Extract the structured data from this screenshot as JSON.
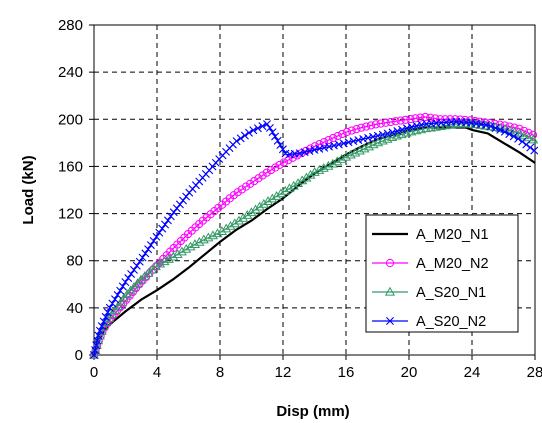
{
  "chart_data": {
    "type": "line",
    "title": "",
    "xlabel": "Disp (mm)",
    "ylabel": "Load (kN)",
    "xlim": [
      0,
      28
    ],
    "ylim": [
      0,
      280
    ],
    "xticks": [
      0,
      4,
      8,
      12,
      16,
      20,
      24,
      28
    ],
    "yticks": [
      0,
      40,
      80,
      120,
      160,
      200,
      240,
      280
    ],
    "grid": true,
    "legend_position": "lower-right",
    "series": [
      {
        "name": "A_M20_N1",
        "color": "#000000",
        "marker": "none",
        "x": [
          0,
          0.3,
          0.6,
          1,
          2,
          3,
          4,
          5,
          6,
          7,
          8,
          9,
          10,
          11,
          12,
          13,
          14,
          15,
          16,
          17,
          18,
          19,
          20,
          21,
          22,
          23,
          23.6,
          24,
          25,
          26,
          27,
          28
        ],
        "y": [
          0,
          12,
          20,
          26,
          37,
          47,
          55,
          64,
          74,
          85,
          96,
          106,
          114,
          124,
          133,
          144,
          154,
          162,
          170,
          177,
          183,
          187,
          191,
          193,
          193,
          193,
          193,
          191,
          188,
          180,
          172,
          163
        ]
      },
      {
        "name": "A_M20_N2",
        "color": "#ff00ff",
        "marker": "circle",
        "x": [
          0,
          0.3,
          0.6,
          1,
          2,
          3,
          4,
          5,
          6,
          7,
          8,
          9,
          10,
          11,
          12,
          13,
          14,
          15,
          16,
          17,
          18,
          19,
          20,
          21,
          22,
          23,
          24,
          25,
          26,
          27,
          28
        ],
        "y": [
          0,
          12,
          22,
          30,
          46,
          62,
          76,
          90,
          103,
          115,
          126,
          137,
          146,
          155,
          163,
          170,
          177,
          183,
          189,
          193,
          196,
          198,
          200,
          202,
          200,
          200,
          199,
          197,
          195,
          192,
          186
        ]
      },
      {
        "name": "A_S20_N1",
        "color": "#339966",
        "marker": "triangle",
        "x": [
          0,
          0.3,
          0.6,
          1,
          2,
          3,
          4,
          5,
          6,
          7,
          8,
          9,
          10,
          11,
          12,
          13,
          14,
          15,
          16,
          17,
          18,
          19,
          20,
          21,
          22,
          23,
          24,
          25,
          26,
          27,
          28
        ],
        "y": [
          0,
          14,
          24,
          32,
          50,
          64,
          76,
          83,
          91,
          98,
          104,
          112,
          121,
          130,
          138,
          146,
          155,
          161,
          168,
          174,
          180,
          185,
          189,
          192,
          194,
          196,
          196,
          194,
          192,
          188,
          182
        ]
      },
      {
        "name": "A_S20_N2",
        "color": "#0000ff",
        "marker": "x",
        "x": [
          0,
          0.3,
          0.6,
          1,
          2,
          3,
          4,
          5,
          6,
          7,
          8,
          9,
          10,
          10.5,
          11,
          11.2,
          12.2,
          13,
          14,
          15,
          16,
          17,
          18,
          19,
          20,
          21,
          22,
          23,
          24,
          25,
          26,
          27,
          28
        ],
        "y": [
          0,
          18,
          28,
          40,
          62,
          81,
          101,
          120,
          137,
          152,
          167,
          181,
          190,
          193,
          196,
          192,
          170,
          171,
          174,
          177,
          180,
          183,
          186,
          189,
          193,
          196,
          197,
          198,
          197,
          195,
          190,
          183,
          173
        ]
      }
    ]
  }
}
